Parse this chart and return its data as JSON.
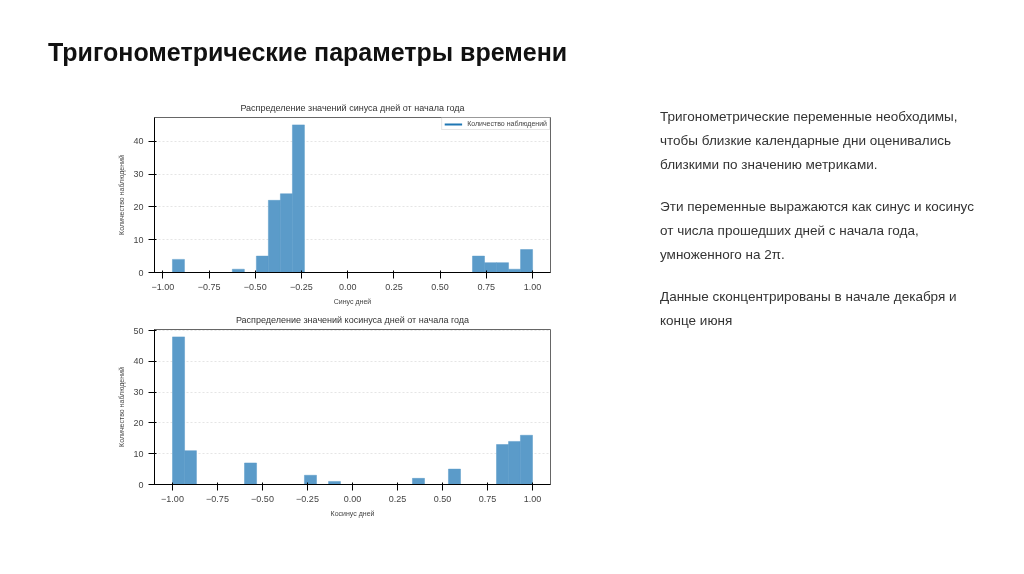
{
  "chart_data": [
    {
      "type": "other",
      "title": "Тригонометрические параметры времени",
      "annotations": [
        "Тригонометрические переменные необходимы, чтобы близкие календарные дни оценивались близкими по значению метриками.",
        "Эти переменные выражаются как синус и косинус от числа прошедших дней с начала года, умноженного на 2π.",
        "Данные сконцентрированы в начале декабря и конце июня"
      ]
    },
    {
      "type": "histogram",
      "title": "Распределение значений синуса дней от начала года",
      "xlabel": "Синус дней",
      "ylabel": "Количество наблюдений",
      "bins": [
        -0.948,
        -0.883,
        -0.818,
        -0.753,
        -0.688,
        -0.624,
        -0.559,
        -0.494,
        -0.429,
        -0.364,
        -0.299,
        -0.234,
        -0.169,
        -0.104,
        -0.039,
        0.026,
        0.09,
        0.155,
        0.22,
        0.285,
        0.35,
        0.415,
        0.48,
        0.545,
        0.61,
        0.675,
        0.74,
        0.805,
        0.87,
        0.935,
        1.0
      ],
      "series": [
        {
          "name": "Количество наблюдений",
          "color": "#5b9bc9",
          "values": [
            4,
            0,
            0,
            0,
            0,
            1,
            0,
            5,
            22,
            24,
            45,
            0,
            0,
            0,
            0,
            0,
            0,
            0,
            0,
            0,
            0,
            0,
            0,
            0,
            0,
            5,
            3,
            3,
            1,
            7
          ]
        }
      ],
      "xlim": [
        -1.045,
        1.097
      ],
      "ylim": [
        0,
        47.25
      ],
      "xticks": [
        {
          "value": -1,
          "label": "−1.00"
        },
        {
          "value": -0.75,
          "label": "−0.75"
        },
        {
          "value": -0.5,
          "label": "−0.50"
        },
        {
          "value": -0.25,
          "label": "−0.25"
        },
        {
          "value": 0,
          "label": "0.00"
        },
        {
          "value": 0.25,
          "label": "0.25"
        },
        {
          "value": 0.5,
          "label": "0.50"
        },
        {
          "value": 0.75,
          "label": "0.75"
        },
        {
          "value": 1,
          "label": "1.00"
        }
      ],
      "yticks": [
        0,
        10,
        20,
        30,
        40
      ],
      "grid": "y",
      "legend": "top right"
    },
    {
      "type": "histogram",
      "title": "Распределение значений косинуса дней от начала года",
      "xlabel": "Косинус дней",
      "ylabel": "Количество наблюдений",
      "bins": [
        -1.0,
        -0.933,
        -0.867,
        -0.8,
        -0.733,
        -0.667,
        -0.6,
        -0.533,
        -0.467,
        -0.4,
        -0.333,
        -0.267,
        -0.2,
        -0.133,
        -0.067,
        0.0,
        0.067,
        0.133,
        0.2,
        0.267,
        0.333,
        0.4,
        0.467,
        0.533,
        0.6,
        0.667,
        0.733,
        0.8,
        0.867,
        0.933,
        1.0
      ],
      "series": [
        {
          "color": "#5b9bc9",
          "values": [
            48,
            11,
            0,
            0,
            0,
            0,
            7,
            0,
            0,
            0,
            0,
            3,
            0,
            1,
            0,
            0,
            0,
            0,
            0,
            0,
            2,
            0,
            0,
            5,
            0,
            0,
            0,
            13,
            14,
            16
          ]
        }
      ],
      "xlim": [
        -1.1,
        1.1
      ],
      "ylim": [
        0,
        50.4
      ],
      "xticks": [
        {
          "value": -1,
          "label": "−1.00"
        },
        {
          "value": -0.75,
          "label": "−0.75"
        },
        {
          "value": -0.5,
          "label": "−0.50"
        },
        {
          "value": -0.25,
          "label": "−0.25"
        },
        {
          "value": 0,
          "label": "0.00"
        },
        {
          "value": 0.25,
          "label": "0.25"
        },
        {
          "value": 0.5,
          "label": "0.50"
        },
        {
          "value": 0.75,
          "label": "0.75"
        },
        {
          "value": 1,
          "label": "1.00"
        }
      ],
      "yticks": [
        0,
        10,
        20,
        30,
        40,
        50
      ],
      "grid": "y"
    }
  ]
}
